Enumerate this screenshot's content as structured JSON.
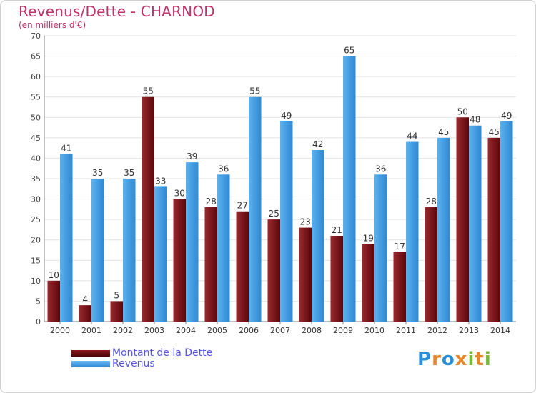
{
  "title": "Revenus/Dette - CHARNOD",
  "subtitle": "(en milliers d'€)",
  "logo_text": "Proxiti",
  "colors": {
    "dette": "#6b0f12",
    "revenus": "#3d9be6",
    "title": "#c0306a",
    "legend_text": "#5555dd"
  },
  "chart_data": {
    "type": "bar",
    "categories": [
      "2000",
      "2001",
      "2002",
      "2003",
      "2004",
      "2005",
      "2006",
      "2007",
      "2008",
      "2009",
      "2010",
      "2011",
      "2012",
      "2013",
      "2014"
    ],
    "series": [
      {
        "name": "Montant de la Dette",
        "values": [
          10,
          4,
          5,
          55,
          30,
          28,
          27,
          25,
          23,
          21,
          19,
          17,
          28,
          50,
          45
        ]
      },
      {
        "name": "Revenus",
        "values": [
          41,
          35,
          35,
          33,
          39,
          36,
          55,
          49,
          42,
          65,
          36,
          44,
          45,
          48,
          49
        ]
      }
    ],
    "ylim": [
      0,
      70
    ],
    "yticks": [
      0,
      5,
      10,
      15,
      20,
      25,
      30,
      35,
      40,
      45,
      50,
      55,
      60,
      65,
      70
    ],
    "grid": true,
    "legend": "bottom-left"
  }
}
